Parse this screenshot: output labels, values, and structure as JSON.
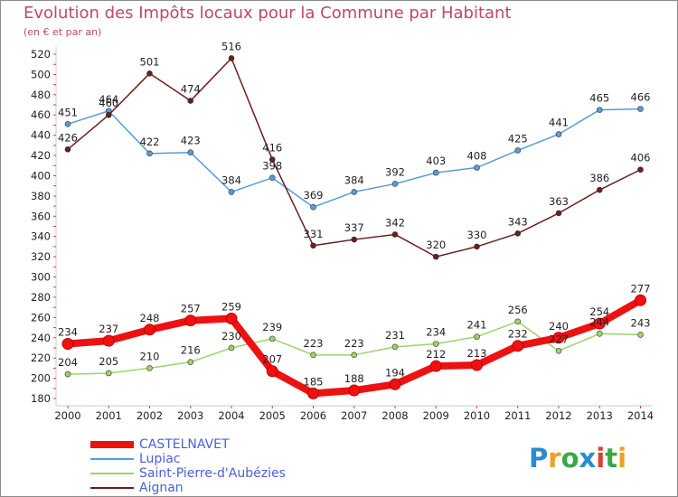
{
  "title": "Evolution des Impôts locaux pour la Commune par Habitant",
  "subtitle": "(en € et par an)",
  "logo_text": "Proxiti",
  "chart_data": {
    "type": "line",
    "x": [
      "2000",
      "2001",
      "2002",
      "2003",
      "2004",
      "2005",
      "2006",
      "2007",
      "2008",
      "2009",
      "2010",
      "2011",
      "2012",
      "2013",
      "2014"
    ],
    "ylim": [
      180,
      520
    ],
    "yticks": [
      180,
      200,
      220,
      240,
      260,
      280,
      300,
      320,
      340,
      360,
      380,
      400,
      420,
      440,
      460,
      480,
      500,
      520
    ],
    "grid": false,
    "legend_position": "bottom-left",
    "series": [
      {
        "name": "CASTELNAVET",
        "color": "#ee1111",
        "values": [
          234,
          237,
          248,
          257,
          259,
          207,
          185,
          188,
          194,
          212,
          213,
          232,
          240,
          254,
          277
        ]
      },
      {
        "name": "Lupiac",
        "color": "#5b9bd5",
        "values": [
          451,
          464,
          422,
          423,
          384,
          398,
          369,
          384,
          392,
          403,
          408,
          425,
          441,
          465,
          466
        ]
      },
      {
        "name": "Saint-Pierre-d'Aubézies",
        "color": "#9ed36a",
        "values": [
          204,
          205,
          210,
          216,
          230,
          239,
          223,
          223,
          231,
          234,
          241,
          256,
          227,
          244,
          243
        ]
      },
      {
        "name": "Aignan",
        "color": "#6b1e1e",
        "values": [
          426,
          460,
          501,
          474,
          516,
          416,
          331,
          337,
          342,
          320,
          330,
          343,
          363,
          386,
          406
        ]
      }
    ]
  }
}
